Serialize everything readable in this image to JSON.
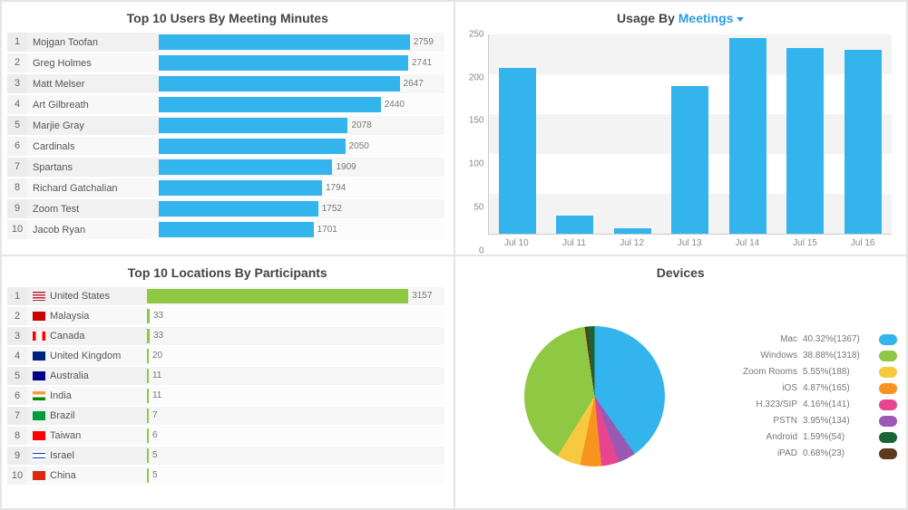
{
  "colors": {
    "blue": "#34b4ec",
    "green": "#8fc842",
    "yellow": "#f7c93f",
    "orange": "#f7941e",
    "pink": "#e84591",
    "purple": "#9b59b6",
    "darkgreen": "#1a6632",
    "brown": "#5b3a1e",
    "row_alt": "#f1f1f1",
    "axis_text": "#888888"
  },
  "top_users": {
    "title": "Top 10 Users By Meeting Minutes",
    "bar_color": "#34b4ec",
    "max": 2759,
    "items": [
      {
        "rank": 1,
        "name": "Mojgan Toofan",
        "value": 2759
      },
      {
        "rank": 2,
        "name": "Greg Holmes",
        "value": 2741
      },
      {
        "rank": 3,
        "name": "Matt Melser",
        "value": 2647
      },
      {
        "rank": 4,
        "name": "Art Gilbreath",
        "value": 2440
      },
      {
        "rank": 5,
        "name": "Marjie Gray",
        "value": 2078
      },
      {
        "rank": 6,
        "name": "Cardinals",
        "value": 2050
      },
      {
        "rank": 7,
        "name": "Spartans",
        "value": 1909
      },
      {
        "rank": 8,
        "name": "Richard Gatchalian",
        "value": 1794
      },
      {
        "rank": 9,
        "name": "Zoom Test",
        "value": 1752
      },
      {
        "rank": 10,
        "name": "Jacob Ryan",
        "value": 1701
      }
    ]
  },
  "usage": {
    "title_prefix": "Usage By ",
    "dropdown_label": "Meetings",
    "type": "bar",
    "bar_color": "#34b4ec",
    "ylim": [
      0,
      250
    ],
    "ytick_step": 50,
    "categories": [
      "Jul 10",
      "Jul 11",
      "Jul 12",
      "Jul 13",
      "Jul 14",
      "Jul 15",
      "Jul 16"
    ],
    "values": [
      208,
      22,
      6,
      185,
      246,
      233,
      231
    ],
    "band_color": "#f3f3f3"
  },
  "top_locations": {
    "title": "Top 10 Locations By Participants",
    "bar_color": "#8fc842",
    "max": 3157,
    "items": [
      {
        "rank": 1,
        "name": "United States",
        "value": 3157,
        "flag": {
          "stripes": true,
          "bg": "#b22234"
        }
      },
      {
        "rank": 2,
        "name": "Malaysia",
        "value": 33,
        "flag": {
          "bg": "#cc0000"
        }
      },
      {
        "rank": 3,
        "name": "Canada",
        "value": 33,
        "flag": {
          "bg": "#ffffff",
          "side": "#ff0000"
        }
      },
      {
        "rank": 4,
        "name": "United Kingdom",
        "value": 20,
        "flag": {
          "bg": "#00247d"
        }
      },
      {
        "rank": 5,
        "name": "Australia",
        "value": 11,
        "flag": {
          "bg": "#00008b"
        }
      },
      {
        "rank": 6,
        "name": "India",
        "value": 11,
        "flag": {
          "tri": [
            "#ff9933",
            "#ffffff",
            "#128807"
          ]
        }
      },
      {
        "rank": 7,
        "name": "Brazil",
        "value": 7,
        "flag": {
          "bg": "#009b3a"
        }
      },
      {
        "rank": 8,
        "name": "Taiwan",
        "value": 6,
        "flag": {
          "bg": "#fe0000"
        }
      },
      {
        "rank": 9,
        "name": "Israel",
        "value": 5,
        "flag": {
          "bg": "#ffffff",
          "stripe": "#0038b8"
        }
      },
      {
        "rank": 10,
        "name": "China",
        "value": 5,
        "flag": {
          "bg": "#de2910"
        }
      }
    ]
  },
  "devices": {
    "title": "Devices",
    "type": "pie",
    "items": [
      {
        "label": "Mac",
        "percent": 40.32,
        "count": 1367,
        "color": "#34b4ec"
      },
      {
        "label": "Windows",
        "percent": 38.88,
        "count": 1318,
        "color": "#8fc842"
      },
      {
        "label": "Zoom Rooms",
        "percent": 5.55,
        "count": 188,
        "color": "#f7c93f"
      },
      {
        "label": "iOS",
        "percent": 4.87,
        "count": 165,
        "color": "#f7941e"
      },
      {
        "label": "H.323/SIP",
        "percent": 4.16,
        "count": 141,
        "color": "#e84591"
      },
      {
        "label": "PSTN",
        "percent": 3.95,
        "count": 134,
        "color": "#9b59b6"
      },
      {
        "label": "Android",
        "percent": 1.59,
        "count": 54,
        "color": "#1a6632"
      },
      {
        "label": "iPAD",
        "percent": 0.68,
        "count": 23,
        "color": "#5b3a1e"
      }
    ]
  }
}
